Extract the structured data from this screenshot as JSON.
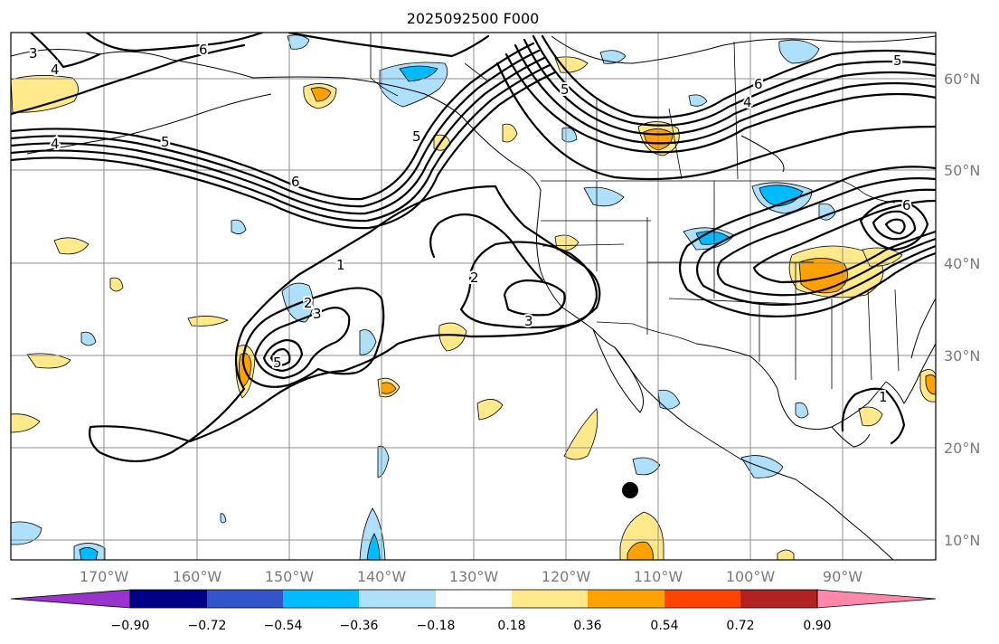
{
  "title": "2025092500 F000",
  "map": {
    "lon_labels": [
      "170°W",
      "160°W",
      "150°W",
      "140°W",
      "130°W",
      "120°W",
      "110°W",
      "100°W",
      "90°W"
    ],
    "lat_labels": [
      "60°N",
      "50°N",
      "40°N",
      "30°N",
      "20°N",
      "10°N"
    ],
    "contour_labels": [
      "4",
      "4",
      "5",
      "6",
      "5",
      "6",
      "1",
      "2",
      "3",
      "5",
      "2",
      "3",
      "5",
      "6",
      "4",
      "6",
      "5",
      "1",
      "3"
    ],
    "colors": {
      "contour": "#000000",
      "grid": "#8c8c8c",
      "axis_text": "#7a7a7a",
      "marker": "#000000"
    }
  },
  "colorbar": {
    "tick_labels": [
      "−0.90",
      "−0.72",
      "−0.54",
      "−0.36",
      "−0.18",
      "0.18",
      "0.36",
      "0.54",
      "0.72",
      "0.90"
    ],
    "bins": [
      {
        "color": "#9933cc"
      },
      {
        "color": "#000088"
      },
      {
        "color": "#3355cc"
      },
      {
        "color": "#00bbff"
      },
      {
        "color": "#aee0fb"
      },
      {
        "color": "#ffffff"
      },
      {
        "color": "#ffe98a"
      },
      {
        "color": "#ffa200"
      },
      {
        "color": "#ff4400"
      },
      {
        "color": "#b22222"
      },
      {
        "color": "#ff88aa"
      }
    ]
  }
}
